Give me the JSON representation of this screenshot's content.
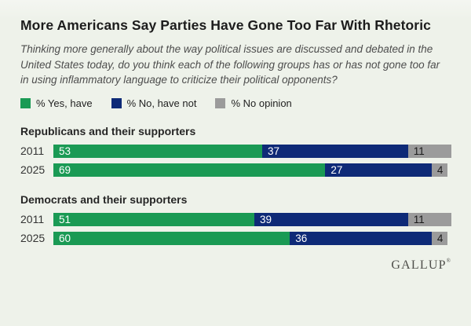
{
  "title": "More Americans Say Parties Have Gone Too Far With Rhetoric",
  "subtitle": "Thinking more generally about the way political issues are discussed and debated in the United States today, do you think each of the following groups has or has not gone too far in using inflammatory language to criticize their political opponents?",
  "colors": {
    "background": "#eef2ea",
    "green": "#1a9a54",
    "navy": "#0e2a77",
    "gray": "#9b9b9b",
    "label_on_dark": "#ffffff",
    "label_on_gray": "#1a1a1a"
  },
  "legend": [
    {
      "label": "% Yes, have",
      "color": "#1a9a54"
    },
    {
      "label": "% No, have not",
      "color": "#0e2a77"
    },
    {
      "label": "% No opinion",
      "color": "#9b9b9b"
    }
  ],
  "chart_data": {
    "type": "bar",
    "orientation": "horizontal",
    "stacked": true,
    "unit": "percent",
    "scale_max": 101,
    "series_names": [
      "% Yes, have",
      "% No, have not",
      "% No opinion"
    ],
    "series_colors": [
      "#1a9a54",
      "#0e2a77",
      "#9b9b9b"
    ],
    "groups": [
      {
        "label": "Republicans and their supporters",
        "rows": [
          {
            "year": "2011",
            "values": [
              53,
              37,
              11
            ]
          },
          {
            "year": "2025",
            "values": [
              69,
              27,
              4
            ]
          }
        ]
      },
      {
        "label": "Democrats and their supporters",
        "rows": [
          {
            "year": "2011",
            "values": [
              51,
              39,
              11
            ]
          },
          {
            "year": "2025",
            "values": [
              60,
              36,
              4
            ]
          }
        ]
      }
    ]
  },
  "footer": {
    "brand": "GALLUP",
    "registered_mark": "®"
  }
}
